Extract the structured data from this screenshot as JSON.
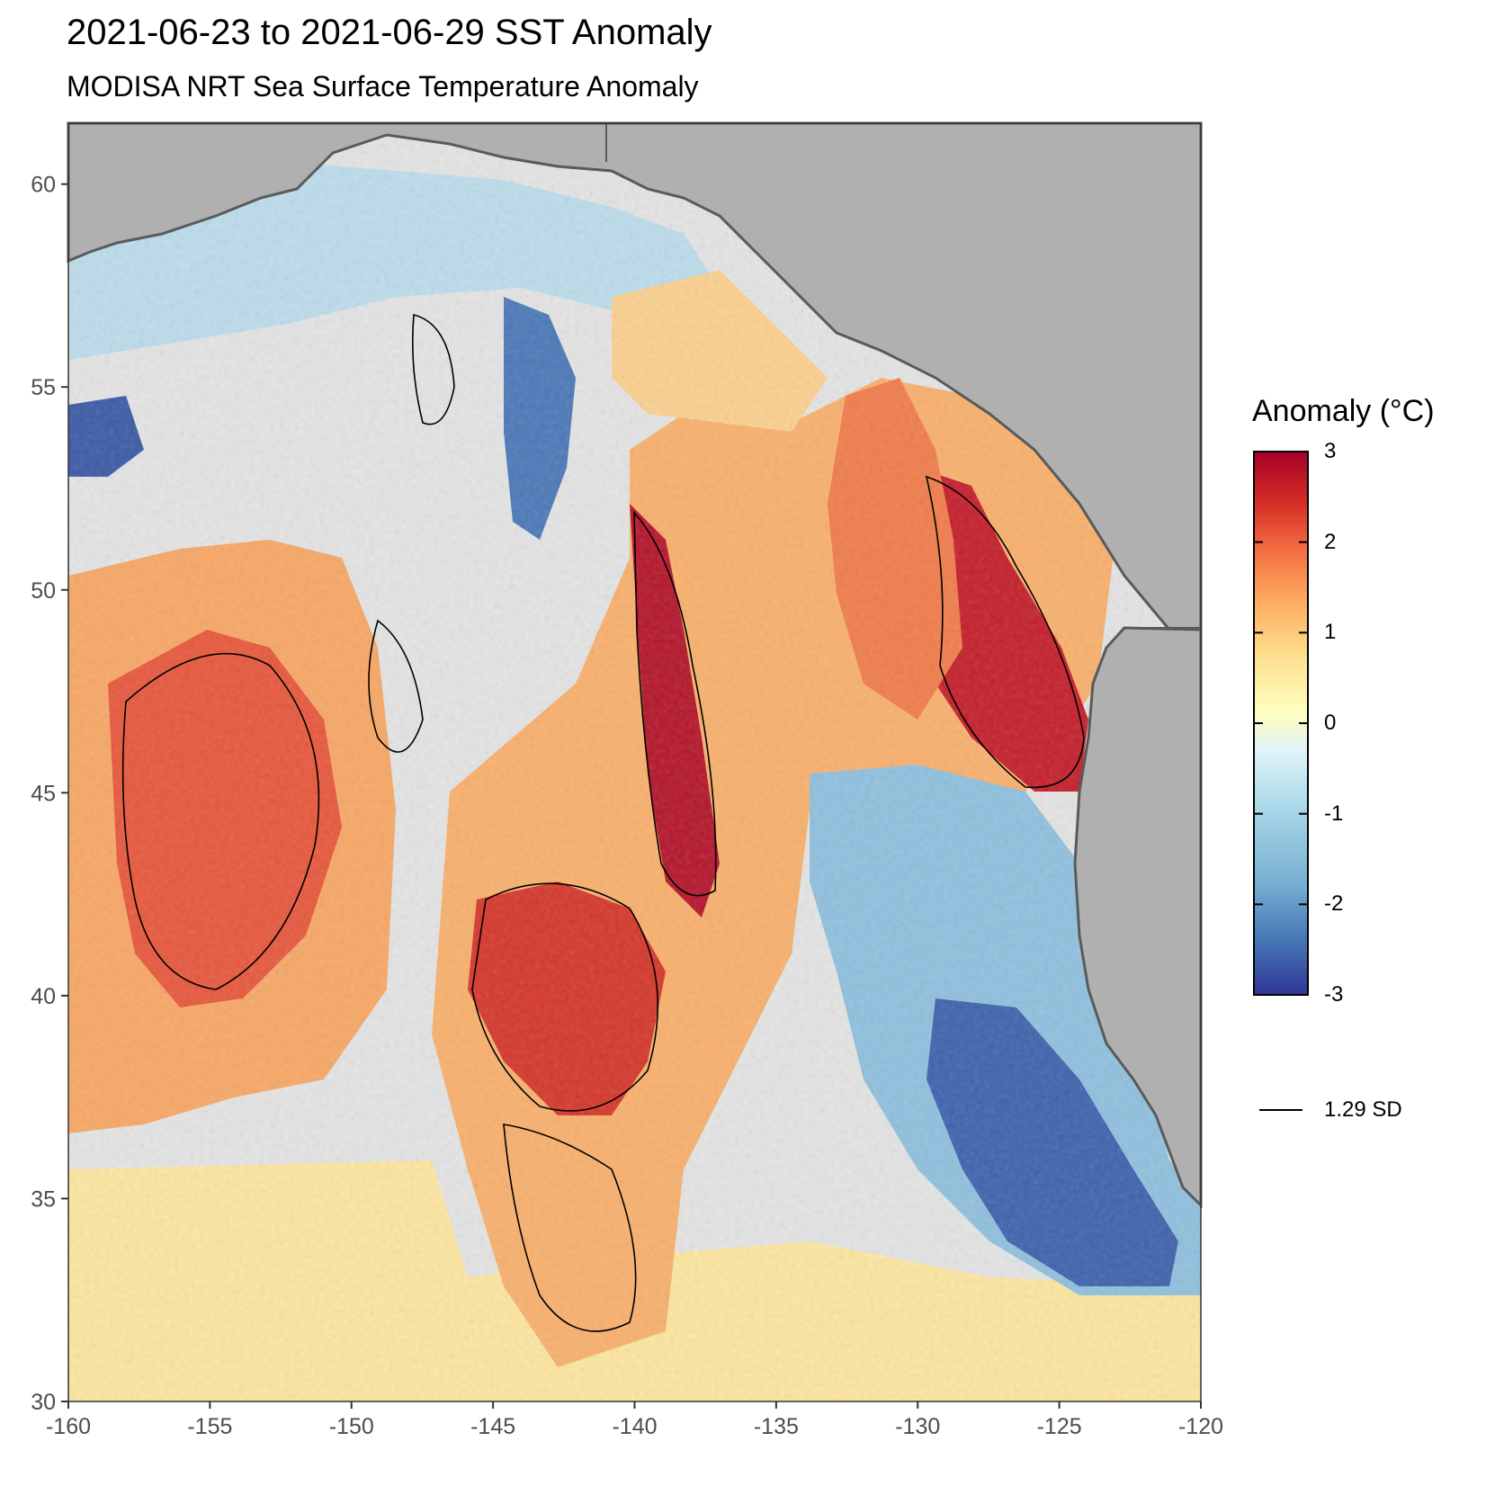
{
  "title": "2021-06-23 to 2021-06-29 SST Anomaly",
  "subtitle": "MODISA NRT Sea Surface Temperature Anomaly",
  "colors": {
    "land": "#b0b0b0",
    "no_data": "#e4e4e4",
    "coastline": "#5a5a5a",
    "contour": "#000000",
    "scale": [
      "#313695",
      "#4575b4",
      "#74add1",
      "#abd9e9",
      "#e0f3f8",
      "#ffffbf",
      "#fee090",
      "#fdae61",
      "#f46d43",
      "#d73027",
      "#a50026"
    ]
  },
  "map": {
    "x_ticks": [
      "-160",
      "-155",
      "-150",
      "-145",
      "-140",
      "-135",
      "-130",
      "-125",
      "-120"
    ],
    "y_ticks": [
      "30",
      "35",
      "40",
      "45",
      "50",
      "55",
      "60"
    ],
    "lon_range": [
      -160,
      -120
    ],
    "lat_range": [
      30,
      61.5
    ]
  },
  "legend": {
    "title": "Anomaly (°C)",
    "ticks": [
      "3",
      "2",
      "1",
      "0",
      "-1",
      "-2",
      "-3"
    ],
    "range": [
      -3,
      3
    ],
    "contour_label": "1.29 SD"
  }
}
